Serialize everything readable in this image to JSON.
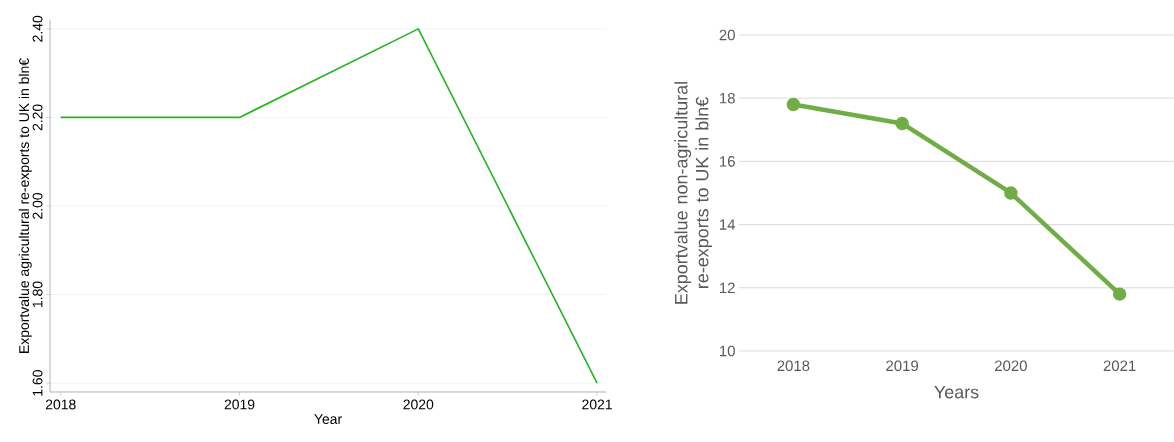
{
  "chart_data": [
    {
      "type": "line",
      "x": [
        2018,
        2019,
        2020,
        2021
      ],
      "values": [
        2.2,
        2.2,
        2.4,
        1.6
      ],
      "color": "#22b422",
      "xlim": [
        2017.94,
        2021.05
      ],
      "ylim": [
        1.58,
        2.42
      ],
      "xticks": [
        2018,
        2019,
        2020,
        2021
      ],
      "yticks": [
        {
          "value": 1.6,
          "label": "1.60"
        },
        {
          "value": 1.8,
          "label": "1.80"
        },
        {
          "value": 2.0,
          "label": "2.00"
        },
        {
          "value": 2.2,
          "label": "2.20"
        },
        {
          "value": 2.4,
          "label": "2.40"
        }
      ],
      "xlabel": "Year",
      "ylabel": "Exportvalue agricultural re-exports to UK in bln€",
      "grid": "y"
    },
    {
      "type": "line",
      "categories": [
        "2018",
        "2019",
        "2020",
        "2021"
      ],
      "values": [
        17.8,
        17.2,
        15.0,
        11.8
      ],
      "color": "#70ad47",
      "ylim": [
        10,
        20
      ],
      "yticks": [
        10,
        12,
        14,
        16,
        18,
        20
      ],
      "xlabel": "Years",
      "ylabel": "Exportvalue non-agricultural re-exports to UK in bln€",
      "grid": "y",
      "marker": "circle"
    }
  ]
}
